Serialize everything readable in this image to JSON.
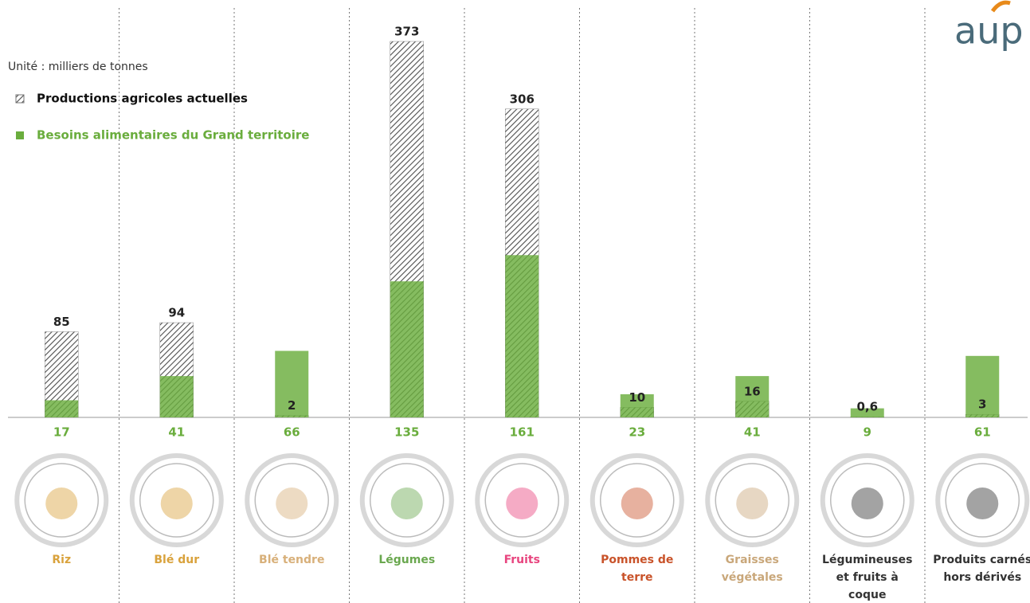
{
  "chart_data": {
    "type": "bar",
    "unit_note": "Unité : milliers de tonnes",
    "logo": "aup",
    "categories": [
      "Riz",
      "Blé dur",
      "Blé tendre",
      "Légumes",
      "Fruits",
      "Pommes de terre",
      "Graisses végétales",
      "Légumineuses et fruits à coque",
      "Produits carnés hors dérivés"
    ],
    "category_colors": [
      "#d9a23c",
      "#d9a23c",
      "#d8b07a",
      "#6aa84f",
      "#e8457f",
      "#c9532a",
      "#c9a77a",
      "#333333",
      "#333333"
    ],
    "series": [
      {
        "name": "Productions agricoles actuelles",
        "color": "#4d4d4d",
        "pattern": "hatch",
        "values": [
          85,
          94,
          2,
          373,
          306,
          10,
          16,
          0.6,
          3
        ],
        "value_labels": [
          "85",
          "94",
          "2",
          "373",
          "306",
          "10",
          "16",
          "0,6",
          "3"
        ]
      },
      {
        "name": "Besoins alimentaires du Grand territoire",
        "color": "#6aad3d",
        "values": [
          17,
          41,
          66,
          135,
          161,
          23,
          41,
          9,
          61
        ]
      }
    ],
    "grid": true
  }
}
